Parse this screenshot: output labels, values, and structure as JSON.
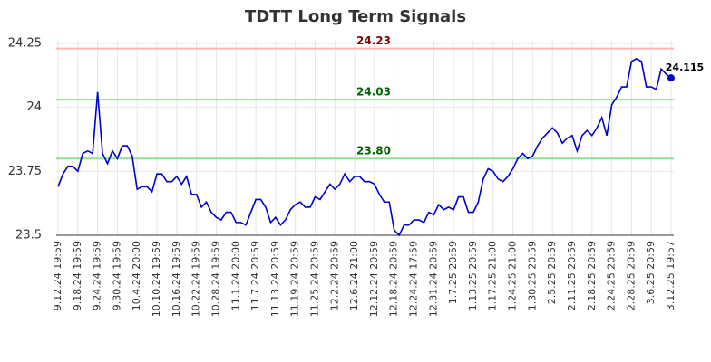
{
  "chart_data": {
    "type": "line",
    "title": "TDTT Long Term Signals",
    "categories": [
      "9.12.24 19:59",
      null,
      null,
      null,
      "9.18.24 19:59",
      null,
      null,
      null,
      "9.24.24 19:59",
      null,
      null,
      null,
      "9.30.24 19:59",
      null,
      null,
      null,
      "10.4.24 20:00",
      null,
      null,
      null,
      "10.10.24 19:59",
      null,
      null,
      null,
      "10.16.24 19:59",
      null,
      null,
      null,
      "10.22.24 19:59",
      null,
      null,
      null,
      "10.28.24 19:59",
      null,
      null,
      null,
      "11.1.24 20:00",
      null,
      null,
      null,
      "11.7.24 20:59",
      null,
      null,
      null,
      "11.13.24 20:59",
      null,
      null,
      null,
      "11.19.24 20:59",
      null,
      null,
      null,
      "11.25.24 20:59",
      null,
      null,
      null,
      "12.2.24 20:59",
      null,
      null,
      null,
      "12.6.24 21:00",
      null,
      null,
      null,
      "12.12.24 20:59",
      null,
      null,
      null,
      "12.18.24 20:59",
      null,
      null,
      null,
      "12.24.24 17:59",
      null,
      null,
      null,
      "12.31.24 20:59",
      null,
      null,
      null,
      "1.7.25 20:59",
      null,
      null,
      null,
      "1.13.25 20:59",
      null,
      null,
      null,
      "1.17.25 21:00",
      null,
      null,
      null,
      "1.24.25 21:00",
      null,
      null,
      null,
      "1.30.25 20:59",
      null,
      null,
      null,
      "2.5.25 20:59",
      null,
      null,
      null,
      "2.11.25 20:59",
      null,
      null,
      null,
      "2.18.25 20:59",
      null,
      null,
      null,
      "2.24.25 20:59",
      null,
      null,
      null,
      "2.28.25 20:59",
      null,
      null,
      null,
      "3.6.25 20:59",
      null,
      null,
      null,
      "3.12.25 19:57"
    ],
    "series": [
      {
        "color": "#0000cc",
        "values": [
          23.69,
          23.74,
          23.77,
          23.77,
          23.75,
          23.82,
          23.83,
          23.82,
          24.06,
          23.82,
          23.78,
          23.83,
          23.8,
          23.85,
          23.85,
          23.81,
          23.68,
          23.69,
          23.69,
          23.67,
          23.74,
          23.74,
          23.71,
          23.71,
          23.73,
          23.7,
          23.73,
          23.66,
          23.66,
          23.61,
          23.63,
          23.59,
          23.57,
          23.56,
          23.59,
          23.59,
          23.55,
          23.55,
          23.54,
          23.59,
          23.64,
          23.64,
          23.61,
          23.55,
          23.57,
          23.54,
          23.56,
          23.6,
          23.62,
          23.63,
          23.61,
          23.61,
          23.65,
          23.64,
          23.67,
          23.7,
          23.68,
          23.7,
          23.74,
          23.71,
          23.73,
          23.73,
          23.71,
          23.71,
          23.7,
          23.66,
          23.63,
          23.63,
          23.52,
          23.5,
          23.54,
          23.54,
          23.56,
          23.56,
          23.55,
          23.59,
          23.58,
          23.62,
          23.6,
          23.61,
          23.6,
          23.65,
          23.65,
          23.59,
          23.59,
          23.63,
          23.72,
          23.76,
          23.75,
          23.72,
          23.71,
          23.73,
          23.76,
          23.8,
          23.82,
          23.8,
          23.81,
          23.85,
          23.88,
          23.9,
          23.92,
          23.9,
          23.86,
          23.88,
          23.89,
          23.83,
          23.89,
          23.91,
          23.89,
          23.92,
          23.96,
          23.89,
          24.01,
          24.04,
          24.08,
          24.08,
          24.18,
          24.19,
          24.18,
          24.08,
          24.08,
          24.07,
          24.15,
          24.13,
          24.115
        ]
      }
    ],
    "reference_lines": [
      {
        "value": 24.23,
        "label": "24.23",
        "color": "#ffb3b3",
        "label_color": "#8b0000"
      },
      {
        "value": 24.03,
        "label": "24.03",
        "color": "#90e090",
        "label_color": "#006400"
      },
      {
        "value": 23.8,
        "label": "23.80",
        "color": "#90e090",
        "label_color": "#006400"
      }
    ],
    "ylim": [
      23.5,
      24.25
    ],
    "yticks": [
      23.5,
      23.75,
      24,
      24.25
    ],
    "grid": true
  }
}
